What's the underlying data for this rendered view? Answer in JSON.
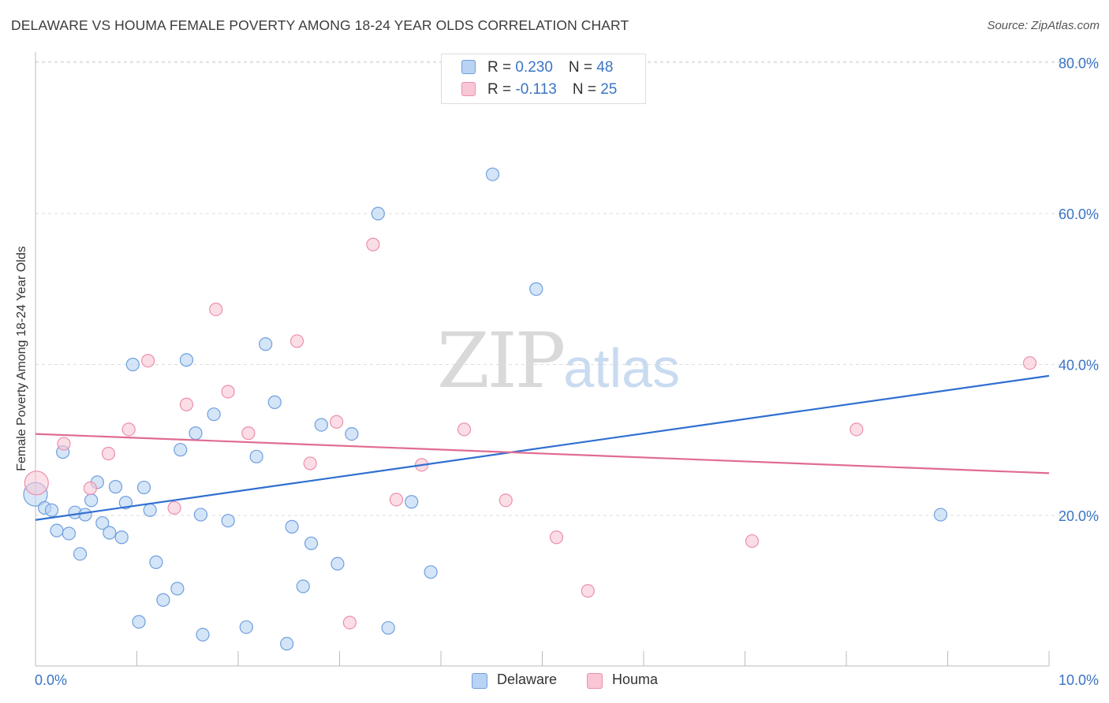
{
  "title": "DELAWARE VS HOUMA FEMALE POVERTY AMONG 18-24 YEAR OLDS CORRELATION CHART",
  "source": "Source: ZipAtlas.com",
  "watermark": {
    "zip": "ZIP",
    "atlas": "atlas"
  },
  "legend_top": {
    "rows": [
      {
        "r_label": "R = ",
        "r_value": "0.230",
        "n_label": "N = ",
        "n_value": "48"
      },
      {
        "r_label": "R = ",
        "r_value": "-0.113",
        "n_label": "N = ",
        "n_value": "25"
      }
    ]
  },
  "legend_bottom": [
    "Delaware",
    "Houma"
  ],
  "colors": {
    "delaware_fill": "#b8d3f3",
    "delaware_stroke": "#6f9fde",
    "delaware_line": "#2f6fd0",
    "houma_fill": "#f9c6d6",
    "houma_stroke": "#ec8fab",
    "houma_line": "#e06b93",
    "tick_label": "#3a74c4",
    "grid": "#dcdcdc"
  },
  "chart_data": {
    "type": "scatter",
    "title": "DELAWARE VS HOUMA FEMALE POVERTY AMONG 18-24 YEAR OLDS CORRELATION CHART",
    "xlabel": "",
    "ylabel": "Female Poverty Among 18-24 Year Olds",
    "xlim": [
      0,
      10
    ],
    "ylim": [
      0,
      85
    ],
    "x_tick_labels": [
      "0.0%",
      "10.0%"
    ],
    "y_tick_labels": [
      "20.0%",
      "40.0%",
      "60.0%",
      "80.0%"
    ],
    "y_ticks": [
      20,
      40,
      60,
      80
    ],
    "grid": true,
    "legend_position": "bottom",
    "series": [
      {
        "name": "Delaware",
        "R": 0.23,
        "N": 48,
        "trend": {
          "x": [
            0,
            10
          ],
          "y": [
            19.4,
            38.5
          ]
        },
        "points": [
          [
            0.0,
            22.8
          ],
          [
            0.09,
            21.0
          ],
          [
            0.16,
            20.7
          ],
          [
            0.21,
            18.0
          ],
          [
            0.27,
            28.4
          ],
          [
            0.33,
            17.6
          ],
          [
            0.39,
            20.4
          ],
          [
            0.44,
            14.9
          ],
          [
            0.49,
            20.1
          ],
          [
            0.55,
            22.0
          ],
          [
            0.61,
            24.4
          ],
          [
            0.66,
            19.0
          ],
          [
            0.73,
            17.7
          ],
          [
            0.79,
            23.8
          ],
          [
            0.85,
            17.1
          ],
          [
            0.89,
            21.7
          ],
          [
            0.96,
            40.0
          ],
          [
            1.02,
            5.9
          ],
          [
            1.07,
            23.7
          ],
          [
            1.13,
            20.7
          ],
          [
            1.19,
            13.8
          ],
          [
            1.26,
            8.8
          ],
          [
            1.4,
            10.3
          ],
          [
            1.43,
            28.7
          ],
          [
            1.49,
            40.6
          ],
          [
            1.58,
            30.9
          ],
          [
            1.63,
            20.1
          ],
          [
            1.65,
            4.2
          ],
          [
            1.76,
            33.4
          ],
          [
            1.9,
            19.3
          ],
          [
            2.08,
            5.2
          ],
          [
            2.18,
            27.8
          ],
          [
            2.27,
            42.7
          ],
          [
            2.36,
            35.0
          ],
          [
            2.48,
            3.0
          ],
          [
            2.53,
            18.5
          ],
          [
            2.64,
            10.6
          ],
          [
            2.72,
            16.3
          ],
          [
            2.82,
            32.0
          ],
          [
            2.98,
            13.6
          ],
          [
            3.12,
            30.8
          ],
          [
            3.38,
            60.0
          ],
          [
            3.48,
            5.1
          ],
          [
            3.71,
            21.8
          ],
          [
            3.9,
            12.5
          ],
          [
            4.51,
            65.2
          ],
          [
            4.94,
            50.0
          ],
          [
            8.93,
            20.1
          ]
        ]
      },
      {
        "name": "Houma",
        "R": -0.113,
        "N": 25,
        "trend": {
          "x": [
            0,
            10
          ],
          "y": [
            30.8,
            25.6
          ]
        },
        "points": [
          [
            0.01,
            24.3
          ],
          [
            0.28,
            29.5
          ],
          [
            0.54,
            23.6
          ],
          [
            0.72,
            28.2
          ],
          [
            0.92,
            31.4
          ],
          [
            1.11,
            40.5
          ],
          [
            1.37,
            21.0
          ],
          [
            1.49,
            34.7
          ],
          [
            1.78,
            47.3
          ],
          [
            1.9,
            36.4
          ],
          [
            2.1,
            30.9
          ],
          [
            2.58,
            43.1
          ],
          [
            2.71,
            26.9
          ],
          [
            2.97,
            32.4
          ],
          [
            3.1,
            5.8
          ],
          [
            3.33,
            55.9
          ],
          [
            3.56,
            22.1
          ],
          [
            3.81,
            26.7
          ],
          [
            4.23,
            31.4
          ],
          [
            4.64,
            22.0
          ],
          [
            5.14,
            17.1
          ],
          [
            5.45,
            10.0
          ],
          [
            7.07,
            16.6
          ],
          [
            8.1,
            31.4
          ],
          [
            9.81,
            40.2
          ]
        ]
      }
    ]
  }
}
